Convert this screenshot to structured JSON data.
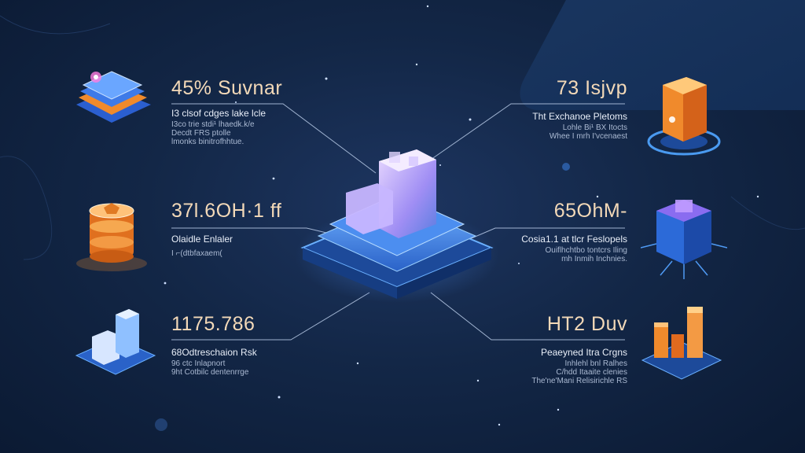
{
  "colors": {
    "background": "#132747",
    "accent_blue": "#4f8ef0",
    "accent_orange": "#f08a2c",
    "accent_purple": "#9a6cf0",
    "value_text": "#f3d9b8"
  },
  "central_node": {
    "icon": "stacked-blocks-platform-icon"
  },
  "stats": [
    {
      "value": "45% Suvnar",
      "label": "I3 clsof cdges lake lcle",
      "note": "I3co trie stdi¹ lhaedk.k/e\nDecdt FRS ptolle\nlmonks binitrofhhtue.",
      "icon": "layered-chip-icon"
    },
    {
      "value": "37Ɩ.6OH·1 ff",
      "label": "Olaidle Enlaler",
      "note": "I ⌐(dtbfaxaem(",
      "icon": "orange-coin-stack-icon"
    },
    {
      "value": "1175.786",
      "label": "68Odtreschaion Rsk",
      "note": "96 ctc Inlapnort\n9ht Cotbilc dentenrrge",
      "icon": "bar-blocks-icon"
    },
    {
      "value": "73 Isjvp",
      "label": "Tht Exchanoe Pletoms",
      "note": "Lohle Bi¹ BX Itocts\nWhee I mrh I'vcenaest",
      "icon": "orange-cube-orbit-icon"
    },
    {
      "value": "65OhM-",
      "label": "Cosia1.1 at tlcr Feslopels",
      "note": "Ouiflhchtbo tontcrs Iling\nmh Inmih Inchnies.",
      "icon": "glowing-cube-icon"
    },
    {
      "value": "HT2 Duv",
      "label": "Peaeyned Itra Crgns",
      "note": "Inhlehl bnl Ralhes\nC/hdd Itaaite clenies\nThe'ne'Mani Relisirichle RS",
      "icon": "orange-bars-platform-icon"
    }
  ]
}
